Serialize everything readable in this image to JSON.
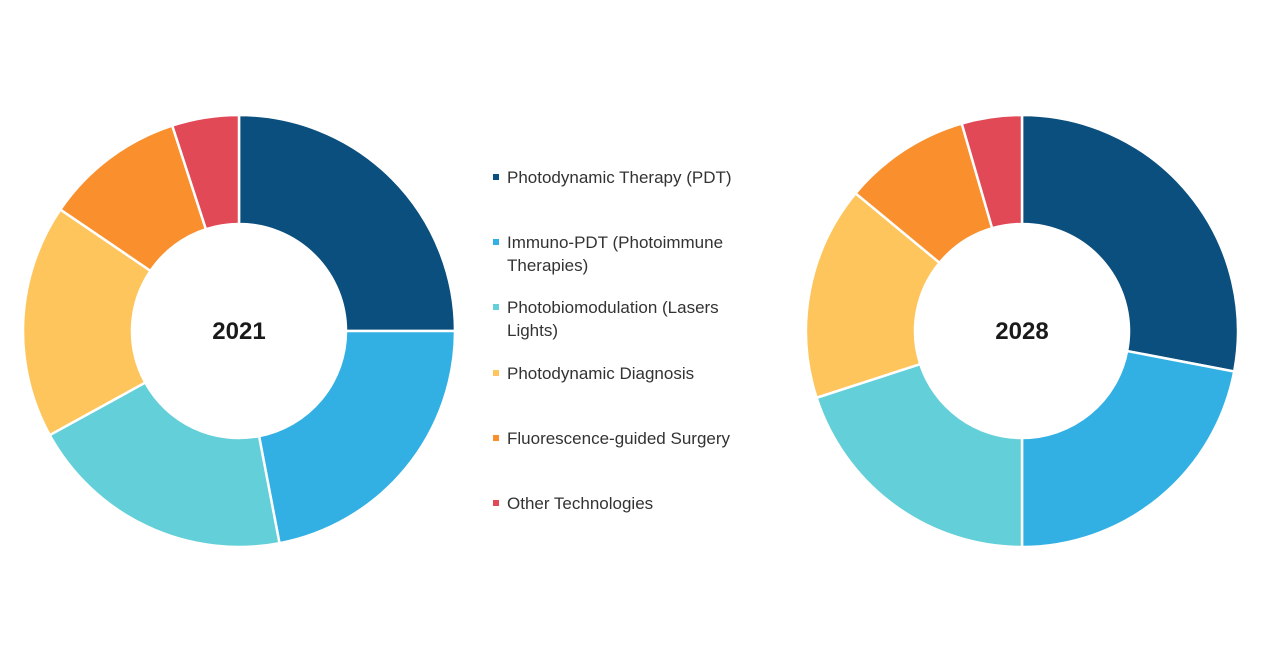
{
  "chart_data": {
    "type": "pie",
    "variant": "donut",
    "categories": [
      "Photodynamic Therapy (PDT)",
      "Immuno-PDT (Photoimmune Therapies)",
      "Photobiomodulation (Lasers Lights)",
      "Photodynamic Diagnosis",
      "Fluorescence-guided Surgery",
      "Other Technologies"
    ],
    "colors": [
      "#0a4f7e",
      "#33b0e3",
      "#63cfd9",
      "#fdc55c",
      "#f98f2d",
      "#e24957"
    ],
    "legend_placement": "center",
    "charts": [
      {
        "label": "2021",
        "values": [
          25,
          22,
          20,
          17.5,
          10.5,
          5
        ]
      },
      {
        "label": "2028",
        "values": [
          28,
          22,
          20,
          16,
          9.5,
          4.5
        ]
      }
    ]
  },
  "legend": {
    "items": [
      {
        "lines": [
          "Photodynamic Therapy (PDT)"
        ]
      },
      {
        "lines": [
          "Immuno-PDT (Photoimmune",
          "Therapies)"
        ]
      },
      {
        "lines": [
          "Photobiomodulation (Lasers",
          "Lights)"
        ]
      },
      {
        "lines": [
          "Photodynamic Diagnosis"
        ]
      },
      {
        "lines": [
          "Fluorescence-guided Surgery"
        ]
      },
      {
        "lines": [
          "Other Technologies"
        ]
      }
    ]
  }
}
